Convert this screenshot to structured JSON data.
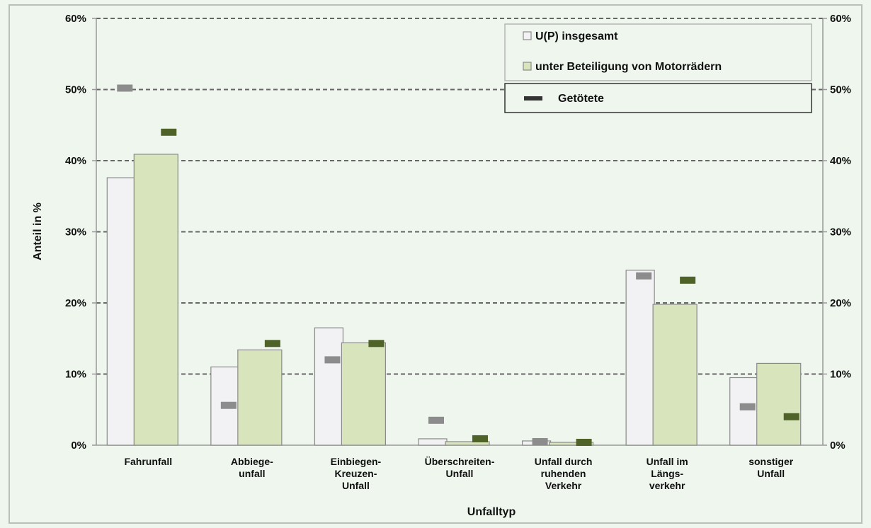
{
  "chart_data": {
    "type": "bar",
    "title": "",
    "xlabel": "Unfalltyp",
    "ylabel": "Anteil in %",
    "ylim": [
      0,
      60
    ],
    "yticks": [
      "0%",
      "10%",
      "20%",
      "30%",
      "40%",
      "50%",
      "60%"
    ],
    "grid": true,
    "legend_position": "top-right",
    "categories": [
      [
        "Fahrunfall"
      ],
      [
        "Abbiege-",
        "unfall"
      ],
      [
        "Einbiegen-",
        "Kreuzen-",
        "Unfall"
      ],
      [
        "Überschreiten-",
        "Unfall"
      ],
      [
        "Unfall durch",
        "ruhenden",
        "Verkehr"
      ],
      [
        "Unfall im",
        "Längs-",
        "verkehr"
      ],
      [
        "sonstiger",
        "Unfall"
      ]
    ],
    "series": [
      {
        "name": "U(P) insgesamt",
        "kind": "bar",
        "color": "#f2f2f4",
        "values": [
          37.6,
          11.0,
          16.5,
          0.9,
          0.6,
          24.6,
          9.5
        ]
      },
      {
        "name": "unter Beteiligung von Motorrädern",
        "kind": "bar",
        "color": "#d8e4bc",
        "values": [
          40.9,
          13.4,
          14.4,
          0.5,
          0.4,
          19.8,
          11.5
        ]
      }
    ],
    "killed": {
      "name": "Getötete",
      "colors": [
        "#8c8c8c",
        "#4f6228"
      ],
      "values_overall": [
        50.2,
        5.6,
        12.0,
        3.5,
        0.5,
        23.8,
        5.4
      ],
      "values_motorcycle": [
        44.0,
        14.3,
        14.3,
        0.9,
        0.4,
        23.2,
        4.0
      ]
    }
  }
}
